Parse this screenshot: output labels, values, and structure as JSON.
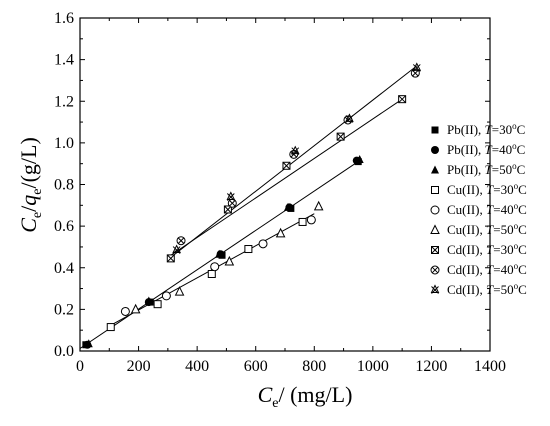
{
  "chart_data": {
    "type": "scatter",
    "xlabel": {
      "main": "C",
      "sub": "e",
      "rest": "/ (mg/L)"
    },
    "ylabel": {
      "c": "C",
      "csub": "e",
      "slash": "/",
      "q": "q",
      "qsub": "e",
      "rest": "/(g/L)"
    },
    "xlim": [
      0,
      1400
    ],
    "ylim": [
      0,
      1.6
    ],
    "xticks": [
      0,
      200,
      400,
      600,
      800,
      1000,
      1200,
      1400
    ],
    "xticklabels": [
      "0",
      "200",
      "400",
      "600",
      "800",
      "1000",
      "1200",
      "1400"
    ],
    "yticks": [
      0.0,
      0.2,
      0.4,
      0.6,
      0.8,
      1.0,
      1.2,
      1.4,
      1.6
    ],
    "yticklabels": [
      "0.0",
      "0.2",
      "0.4",
      "0.6",
      "0.8",
      "1.0",
      "1.2",
      "1.4",
      "1.6"
    ],
    "grid": false,
    "legend_position": "right",
    "series": [
      {
        "name": "Pb(II), T=30oC",
        "label_metal": "Pb(II), ",
        "label_T": "T",
        "label_eq": "=30",
        "label_o": "o",
        "label_C": "C",
        "marker": "square-filled",
        "x": [
          20,
          240,
          485,
          720,
          950
        ],
        "y": [
          0.03,
          0.235,
          0.46,
          0.685,
          0.91
        ]
      },
      {
        "name": "Pb(II), T=40oC",
        "label_metal": "Pb(II), ",
        "label_T": "T",
        "label_eq": "=40",
        "label_o": "o",
        "label_C": "C",
        "marker": "circle-filled",
        "x": [
          25,
          235,
          480,
          715,
          945
        ],
        "y": [
          0.03,
          0.235,
          0.465,
          0.69,
          0.915
        ]
      },
      {
        "name": "Pb(II), T=50oC",
        "label_metal": "Pb(II), ",
        "label_T": "T",
        "label_eq": "=50",
        "label_o": "o",
        "label_C": "C",
        "marker": "triangle-filled",
        "x": [
          30,
          235,
          475,
          710,
          955
        ],
        "y": [
          0.035,
          0.24,
          0.465,
          0.69,
          0.92
        ]
      },
      {
        "name": "Cu(II), T=30oC",
        "label_metal": "Cu(II), ",
        "label_T": "T",
        "label_eq": "=30",
        "label_o": "o",
        "label_C": "C",
        "marker": "square-open",
        "x": [
          105,
          265,
          450,
          575,
          760
        ],
        "y": [
          0.115,
          0.225,
          0.37,
          0.49,
          0.62
        ]
      },
      {
        "name": "Cu(II), T=40oC",
        "label_metal": "Cu(II), ",
        "label_T": "T",
        "label_eq": "=40",
        "label_o": "o",
        "label_C": "C",
        "marker": "circle-open",
        "x": [
          155,
          295,
          460,
          625,
          790
        ],
        "y": [
          0.19,
          0.265,
          0.405,
          0.515,
          0.63
        ]
      },
      {
        "name": "Cu(II), T=50oC",
        "label_metal": "Cu(II), ",
        "label_T": "T",
        "label_eq": "=50",
        "label_o": "o",
        "label_C": "C",
        "marker": "triangle-open",
        "x": [
          190,
          340,
          510,
          685,
          815
        ],
        "y": [
          0.2,
          0.285,
          0.43,
          0.565,
          0.695
        ]
      },
      {
        "name": "Cd(II), T=30oC",
        "label_metal": "Cd(II), ",
        "label_T": "T",
        "label_eq": "=30",
        "label_o": "o",
        "label_C": "C",
        "marker": "square-x",
        "x": [
          310,
          505,
          705,
          890,
          1100
        ],
        "y": [
          0.445,
          0.68,
          0.89,
          1.03,
          1.21
        ]
      },
      {
        "name": "Cd(II), T=40oC",
        "label_metal": "Cd(II), ",
        "label_T": "T",
        "label_eq": "=40",
        "label_o": "o",
        "label_C": "C",
        "marker": "circle-x",
        "x": [
          345,
          520,
          730,
          915,
          1145
        ],
        "y": [
          0.53,
          0.71,
          0.945,
          1.11,
          1.335
        ]
      },
      {
        "name": "Cd(II), T=50oC",
        "label_metal": "Cd(II), ",
        "label_T": "T",
        "label_eq": "=50",
        "label_o": "o",
        "label_C": "C",
        "marker": "star",
        "x": [
          330,
          515,
          735,
          920,
          1150
        ],
        "y": [
          0.485,
          0.74,
          0.96,
          1.115,
          1.36
        ]
      }
    ],
    "fit_lines": [
      {
        "x": [
          0,
          960
        ],
        "y": [
          0.012,
          0.92
        ]
      },
      {
        "x": [
          100,
          800
        ],
        "y": [
          0.12,
          0.66
        ]
      },
      {
        "x": [
          310,
          1100
        ],
        "y": [
          0.46,
          1.21
        ]
      },
      {
        "x": [
          310,
          1150
        ],
        "y": [
          0.45,
          1.37
        ]
      }
    ]
  }
}
